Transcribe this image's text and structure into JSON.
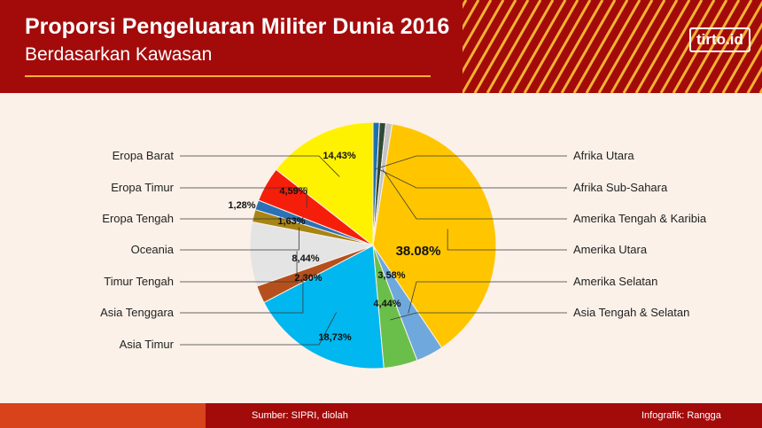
{
  "header": {
    "title": "Proporsi Pengeluaran Militer Dunia 2016",
    "subtitle": "Berdasarkan Kawasan",
    "logo": "tirto.id"
  },
  "footer": {
    "source": "Sumber: SIPRI, diolah",
    "credit": "Infografik: Rangga"
  },
  "colors": {
    "header_bg": "#a30b0b",
    "accent": "#f2b233",
    "page_bg": "#fbf1e9"
  },
  "chart_data": {
    "type": "pie",
    "title": "Proporsi Pengeluaran Militer Dunia 2016",
    "slices": [
      {
        "name": "Afrika Utara",
        "value": null,
        "label": "",
        "color": "#1f6fad"
      },
      {
        "name": "Afrika Sub-Sahara",
        "value": null,
        "label": "",
        "color": "#2f4a35"
      },
      {
        "name": "Amerika Tengah & Karibia",
        "value": null,
        "label": "",
        "color": "#c4c4c4"
      },
      {
        "name": "Amerika Utara",
        "value": 38.08,
        "label": "38.08%",
        "color": "#ffc600"
      },
      {
        "name": "Amerika Selatan",
        "value": 3.58,
        "label": "3,58%",
        "color": "#6ea8dc"
      },
      {
        "name": "Asia Tengah & Selatan",
        "value": 4.44,
        "label": "4,44%",
        "color": "#6abf4b"
      },
      {
        "name": "Asia Timur",
        "value": 18.73,
        "label": "18,73%",
        "color": "#00b7ef"
      },
      {
        "name": "Asia Tenggara",
        "value": 2.3,
        "label": "2,30%",
        "color": "#b5501c"
      },
      {
        "name": "Timur Tengah",
        "value": 8.44,
        "label": "8,44%",
        "color": "#e4e4e4"
      },
      {
        "name": "Oceania",
        "value": 1.63,
        "label": "1,63%",
        "color": "#a88415"
      },
      {
        "name": "Eropa Tengah",
        "value": 1.28,
        "label": "1,28%",
        "color": "#2a72b8"
      },
      {
        "name": "Eropa Timur",
        "value": 4.59,
        "label": "4,59%",
        "color": "#f51e0a"
      },
      {
        "name": "Eropa Barat",
        "value": 14.43,
        "label": "14,43%",
        "color": "#fff200"
      }
    ]
  }
}
